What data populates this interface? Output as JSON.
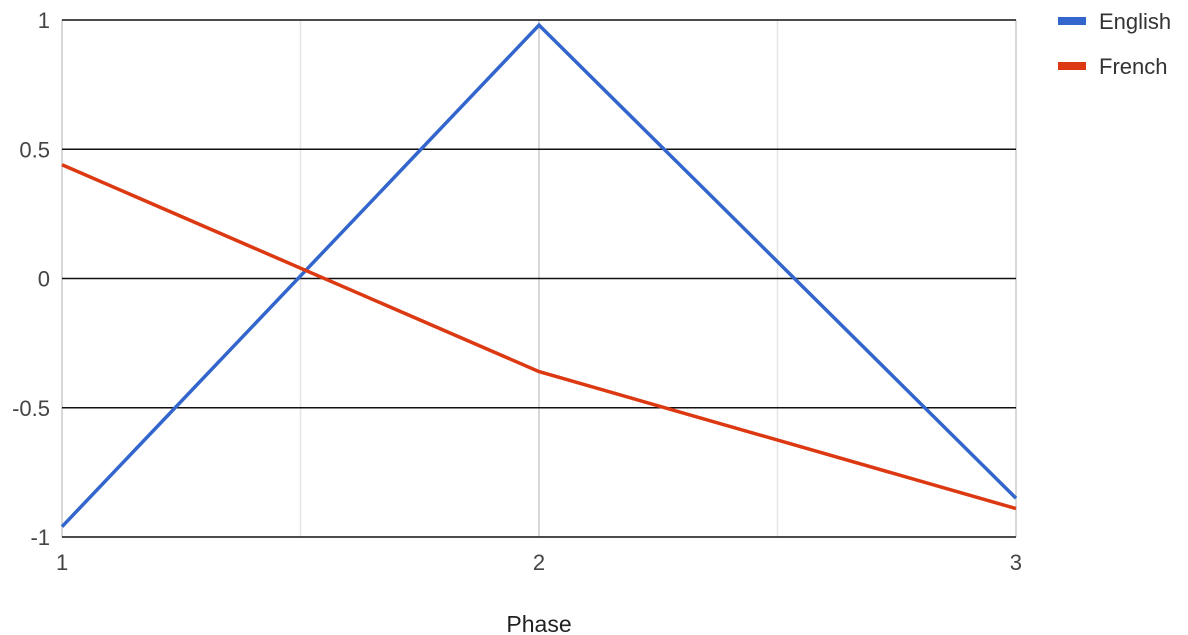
{
  "chart_data": {
    "type": "line",
    "title": "",
    "xlabel": "Phase",
    "ylabel": "",
    "x": [
      1,
      2,
      3
    ],
    "xticks": [
      1,
      2,
      3
    ],
    "xlim": [
      1,
      3
    ],
    "ylim": [
      -1,
      1
    ],
    "yticks": [
      -1,
      -0.5,
      0,
      0.5,
      1
    ],
    "ytick_labels": [
      "-1",
      "-0.5",
      "0",
      "0.5",
      "1"
    ],
    "grid": true,
    "legend_position": "top-right",
    "series": [
      {
        "name": "English",
        "color": "#3366cc",
        "values": [
          -0.96,
          0.98,
          -0.85
        ]
      },
      {
        "name": "French",
        "color": "#dc3912",
        "values": [
          0.44,
          -0.36,
          -0.89
        ]
      }
    ]
  }
}
